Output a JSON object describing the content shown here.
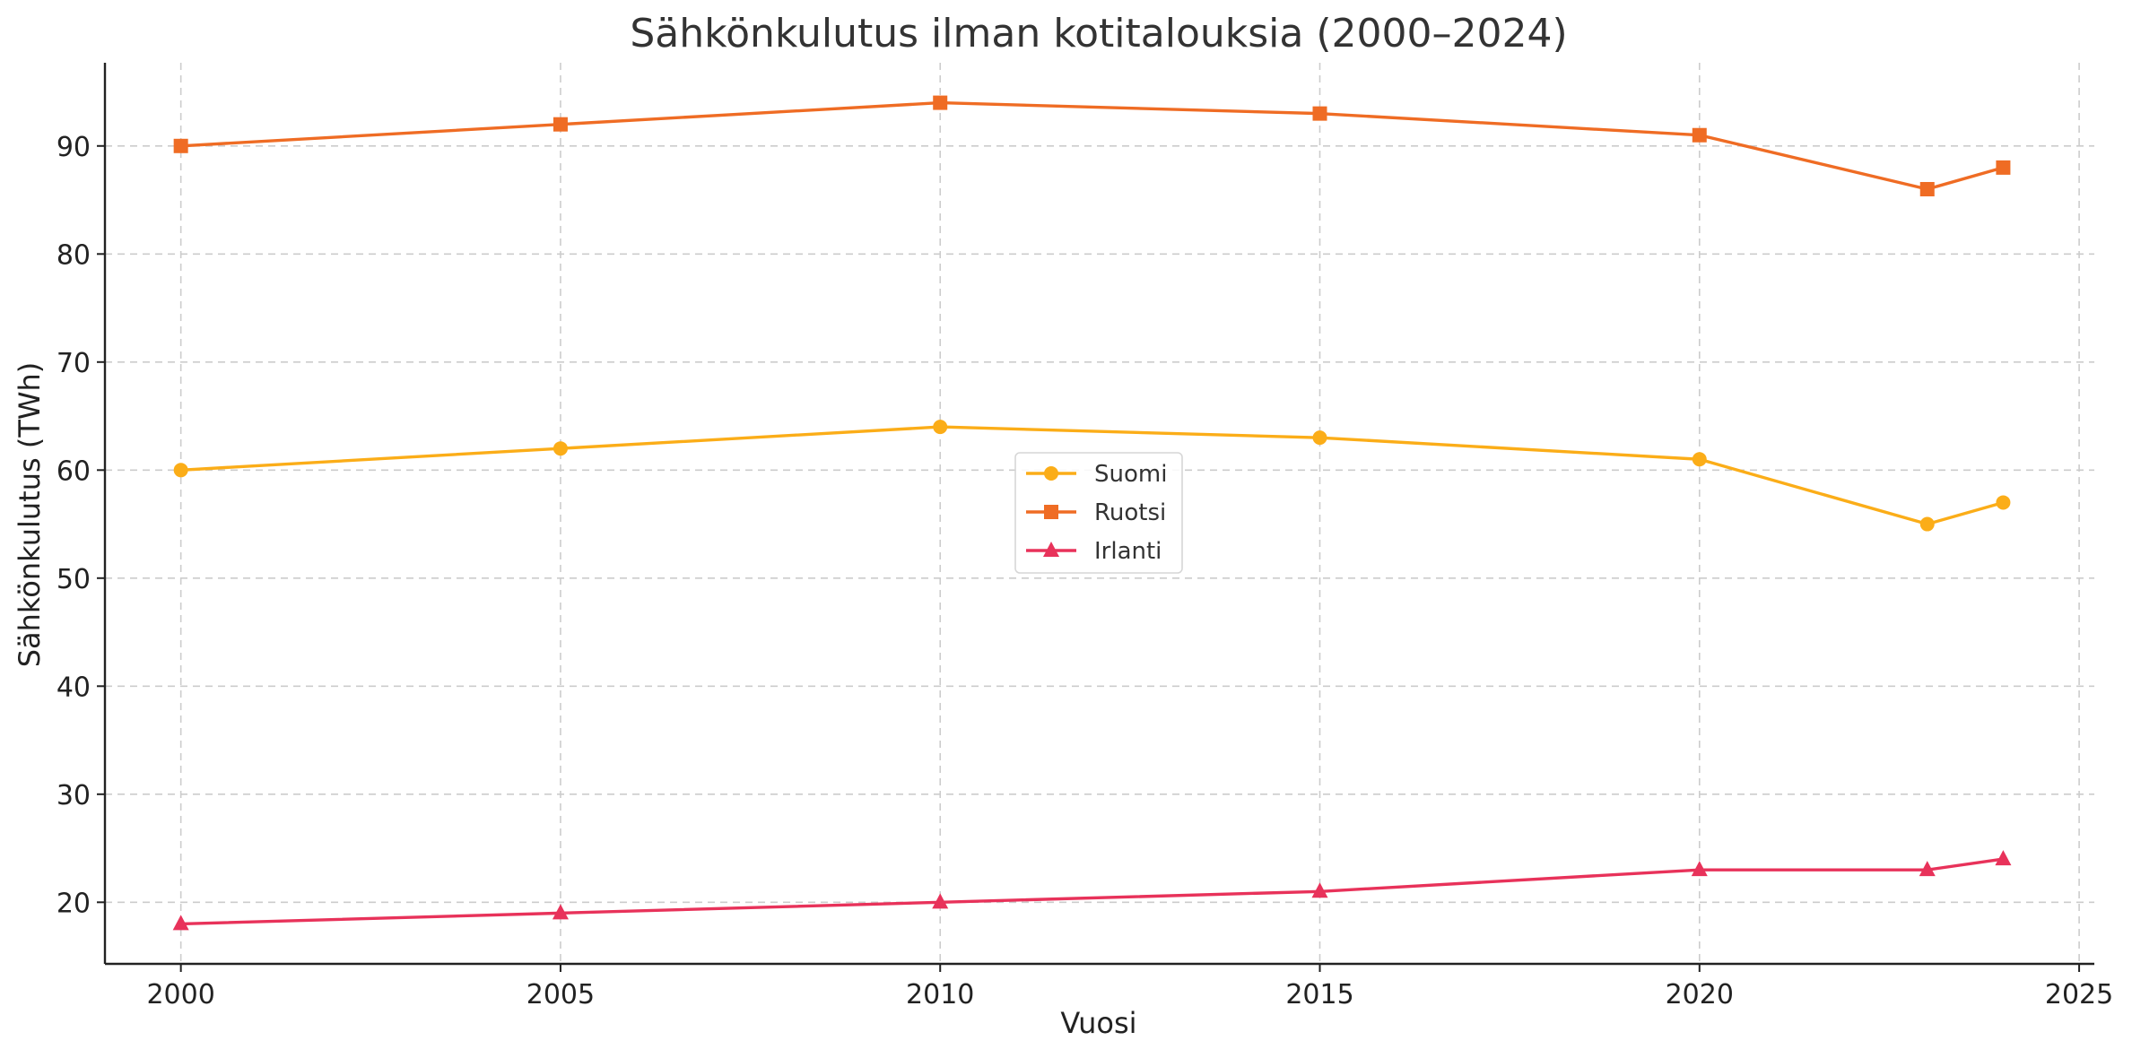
{
  "chart_data": {
    "type": "line",
    "title": "Sähkönkulutus ilman kotitalouksia (2000–2024)",
    "xlabel": "Vuosi",
    "ylabel": "Sähkönkulutus (TWh)",
    "x": [
      2000,
      2005,
      2010,
      2015,
      2020,
      2023,
      2024
    ],
    "xlim": [
      1999,
      2025.2
    ],
    "ylim": [
      14.3,
      97.7
    ],
    "xticks": [
      2000,
      2005,
      2010,
      2015,
      2020,
      2025
    ],
    "yticks": [
      20,
      30,
      40,
      50,
      60,
      70,
      80,
      90
    ],
    "grid": true,
    "legend_position": "center",
    "series": [
      {
        "name": "Suomi",
        "values": [
          60,
          62,
          64,
          63,
          61,
          55,
          57
        ],
        "color": "#fbad18",
        "marker": "circle"
      },
      {
        "name": "Ruotsi",
        "values": [
          90,
          92,
          94,
          93,
          91,
          86,
          88
        ],
        "color": "#ef6c24",
        "marker": "square"
      },
      {
        "name": "Irlanti",
        "values": [
          18,
          19,
          20,
          21,
          23,
          23,
          24
        ],
        "color": "#e8325a",
        "marker": "triangle"
      }
    ]
  }
}
